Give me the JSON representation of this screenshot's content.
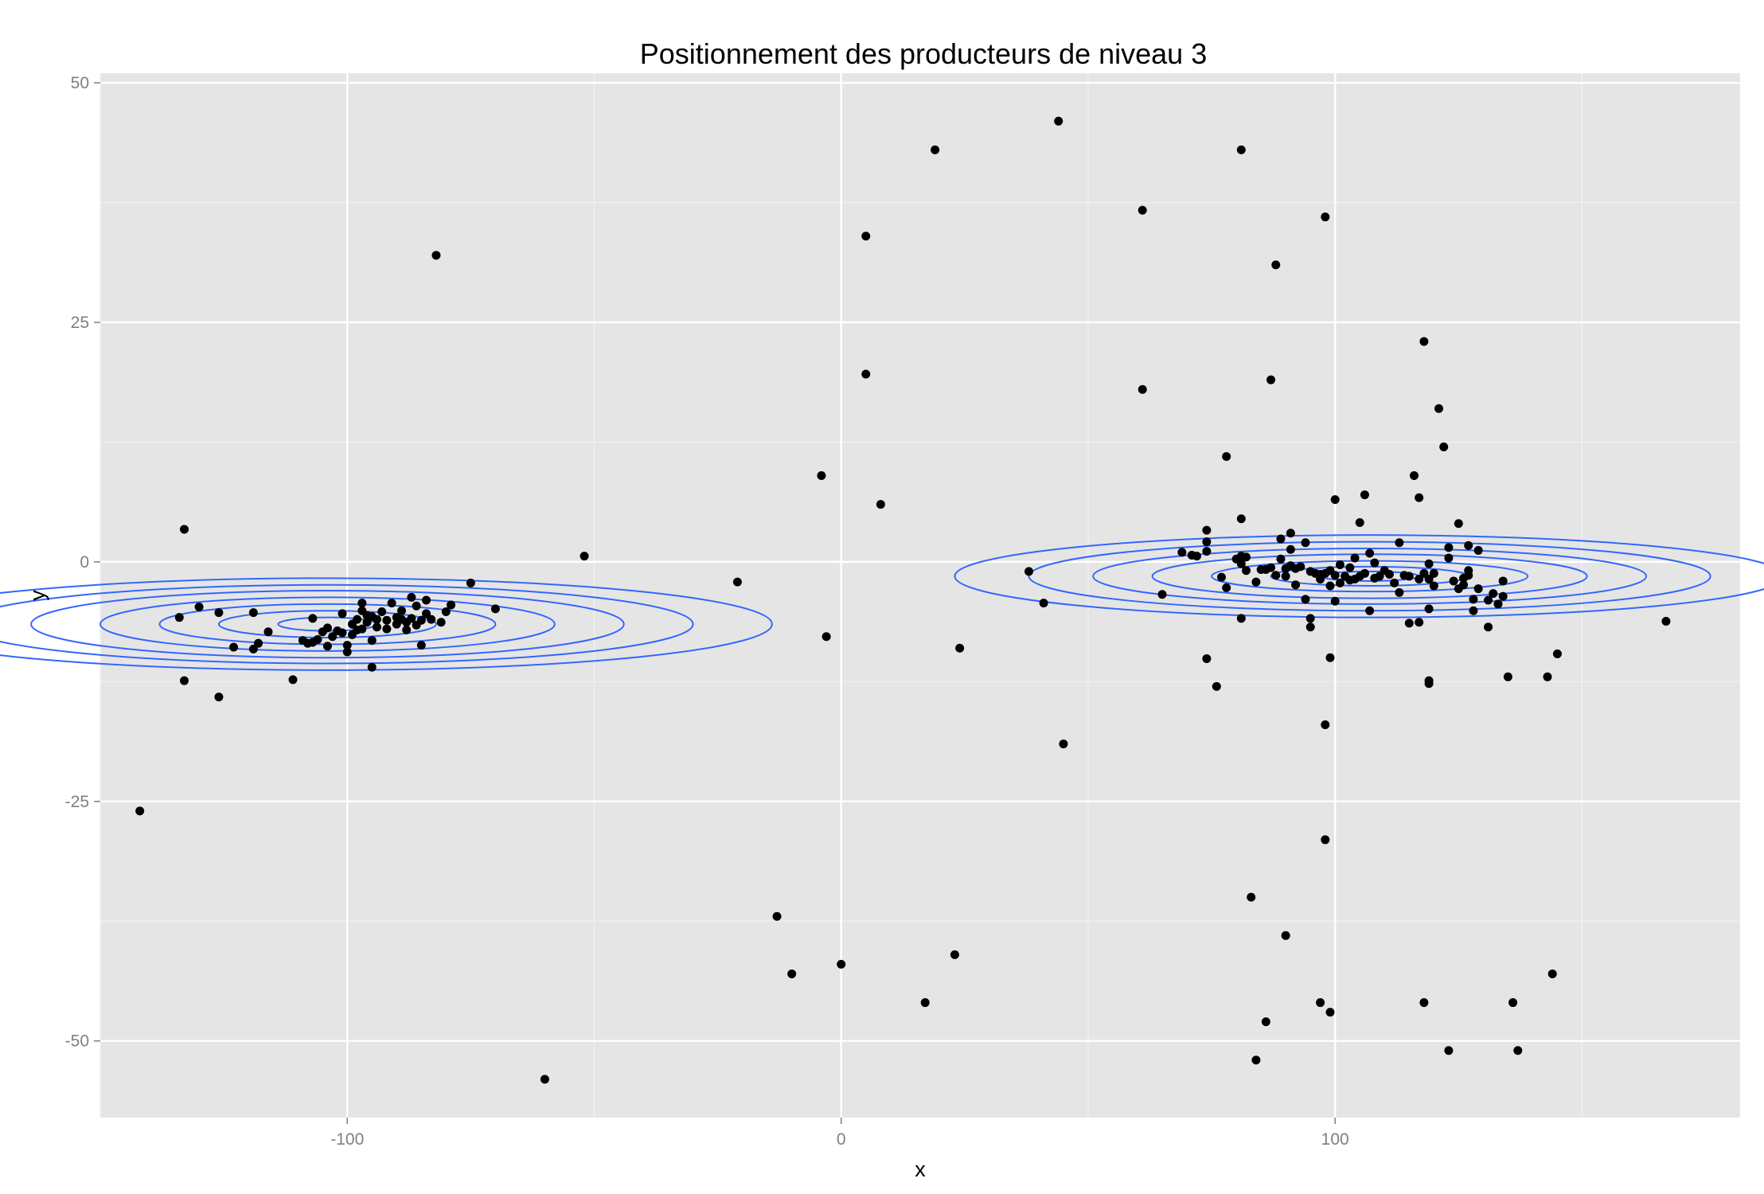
{
  "chart_data": {
    "type": "scatter",
    "title": "Positionnement des producteurs de niveau 3",
    "xlabel": "x",
    "ylabel": "y",
    "xlim": [
      -150,
      182
    ],
    "ylim": [
      -58,
      51
    ],
    "x_ticks": [
      -100,
      0,
      100
    ],
    "y_ticks": [
      -50,
      -25,
      0,
      25,
      50
    ],
    "x_tick_labels": [
      "-100",
      "0",
      "100"
    ],
    "y_tick_labels": [
      "-50",
      "-25",
      "0",
      "25",
      "50"
    ],
    "grid": true,
    "legend": "none",
    "colors": {
      "panel": "#e5e5e5",
      "grid_major": "#ffffff",
      "grid_minor": "#f2f2f2",
      "points": "#000000",
      "contours": "#3366ff"
    },
    "series": [
      {
        "type": "scatter",
        "points": [
          [
            -142,
            -26
          ],
          [
            -133,
            3.4
          ],
          [
            -134,
            -5.8
          ],
          [
            -133,
            -12.4
          ],
          [
            -130,
            -4.7
          ],
          [
            -126,
            -14.1
          ],
          [
            -126,
            -5.3
          ],
          [
            -123,
            -8.9
          ],
          [
            -119,
            -5.3
          ],
          [
            -119,
            -9.1
          ],
          [
            -118,
            -8.5
          ],
          [
            -116,
            -7.3
          ],
          [
            -111,
            -12.3
          ],
          [
            -109,
            -8.2
          ],
          [
            -108,
            -8.5
          ],
          [
            -107,
            -5.9
          ],
          [
            -107,
            -8.4
          ],
          [
            -106,
            -8.1
          ],
          [
            -105,
            -7.3
          ],
          [
            -104,
            -8.8
          ],
          [
            -104,
            -6.9
          ],
          [
            -103,
            -7.8
          ],
          [
            -102,
            -7.2
          ],
          [
            -101,
            -5.4
          ],
          [
            -101,
            -7.4
          ],
          [
            -100,
            -9.4
          ],
          [
            -100,
            -8.7
          ],
          [
            -99,
            -7.6
          ],
          [
            -99,
            -6.5
          ],
          [
            -98,
            -7.1
          ],
          [
            -98,
            -6.0
          ],
          [
            -97,
            -5.1
          ],
          [
            -97,
            -4.3
          ],
          [
            -97,
            -7.0
          ],
          [
            -96,
            -6.3
          ],
          [
            -96,
            -5.6
          ],
          [
            -95,
            -11.0
          ],
          [
            -95,
            -8.2
          ],
          [
            -95,
            -5.7
          ],
          [
            -94,
            -6.8
          ],
          [
            -94,
            -6.0
          ],
          [
            -93,
            -5.2
          ],
          [
            -92,
            -6.1
          ],
          [
            -92,
            -7.0
          ],
          [
            -91,
            -4.3
          ],
          [
            -90,
            -6.5
          ],
          [
            -90,
            -5.8
          ],
          [
            -89,
            -6.0
          ],
          [
            -89,
            -5.1
          ],
          [
            -88,
            -6.3
          ],
          [
            -88,
            -7.1
          ],
          [
            -87,
            -3.7
          ],
          [
            -87,
            -5.9
          ],
          [
            -86,
            -6.6
          ],
          [
            -86,
            -4.6
          ],
          [
            -85,
            -6.1
          ],
          [
            -85,
            -8.7
          ],
          [
            -84,
            -4.0
          ],
          [
            -84,
            -5.4
          ],
          [
            -83,
            -6.0
          ],
          [
            -82,
            32
          ],
          [
            -81,
            -6.3
          ],
          [
            -80,
            -5.2
          ],
          [
            -79,
            -4.5
          ],
          [
            -75,
            -2.2
          ],
          [
            -70,
            -4.9
          ],
          [
            -52,
            0.6
          ],
          [
            -60,
            -54
          ],
          [
            -21,
            -2.1
          ],
          [
            -4,
            9
          ],
          [
            -3,
            -7.8
          ],
          [
            5,
            34
          ],
          [
            5,
            19.6
          ],
          [
            8,
            6
          ],
          [
            19,
            43
          ],
          [
            24,
            -9
          ],
          [
            -13,
            -37
          ],
          [
            -10,
            -43
          ],
          [
            0,
            -42
          ],
          [
            17,
            -46
          ],
          [
            23,
            -41
          ],
          [
            38,
            -1
          ],
          [
            41,
            -4.3
          ],
          [
            44,
            46
          ],
          [
            45,
            -19
          ],
          [
            61,
            36.7
          ],
          [
            61,
            18
          ],
          [
            65,
            -3.4
          ],
          [
            69,
            1.0
          ],
          [
            71,
            0.7
          ],
          [
            72,
            0.6
          ],
          [
            74,
            3.3
          ],
          [
            74,
            2.1
          ],
          [
            74,
            1.1
          ],
          [
            74,
            -10.1
          ],
          [
            76,
            -13
          ],
          [
            77,
            -1.6
          ],
          [
            78,
            -2.7
          ],
          [
            78,
            11
          ],
          [
            80,
            0.3
          ],
          [
            81,
            43
          ],
          [
            81,
            -0.2
          ],
          [
            81,
            0.6
          ],
          [
            81,
            -5.9
          ],
          [
            82,
            0.5
          ],
          [
            81,
            4.5
          ],
          [
            82,
            -0.9
          ],
          [
            84,
            -2.1
          ],
          [
            85,
            -0.8
          ],
          [
            86,
            -0.8
          ],
          [
            87,
            19
          ],
          [
            87,
            -0.6
          ],
          [
            88,
            -1.4
          ],
          [
            88,
            31
          ],
          [
            89,
            0.3
          ],
          [
            89,
            2.4
          ],
          [
            90,
            -1.5
          ],
          [
            90,
            -0.7
          ],
          [
            91,
            -0.4
          ],
          [
            91,
            3.0
          ],
          [
            91,
            1.3
          ],
          [
            92,
            -0.7
          ],
          [
            92,
            -2.4
          ],
          [
            93,
            -0.5
          ],
          [
            94,
            -3.9
          ],
          [
            94,
            2.0
          ],
          [
            95,
            -5.9
          ],
          [
            95,
            -6.8
          ],
          [
            95,
            -1.0
          ],
          [
            96,
            -1.2
          ],
          [
            97,
            -1.8
          ],
          [
            97,
            -1.3
          ],
          [
            98,
            -17
          ],
          [
            98,
            -29
          ],
          [
            98,
            36
          ],
          [
            98,
            -1.2
          ],
          [
            99,
            -10
          ],
          [
            99,
            -0.9
          ],
          [
            99,
            -2.5
          ],
          [
            100,
            -4.1
          ],
          [
            100,
            6.5
          ],
          [
            100,
            -1.4
          ],
          [
            101,
            -0.3
          ],
          [
            101,
            -2.2
          ],
          [
            102,
            -1.5
          ],
          [
            103,
            -0.6
          ],
          [
            103,
            -1.9
          ],
          [
            104,
            0.4
          ],
          [
            104,
            -1.8
          ],
          [
            105,
            4.1
          ],
          [
            105,
            -1.5
          ],
          [
            106,
            -1.2
          ],
          [
            106,
            7.0
          ],
          [
            107,
            -5.1
          ],
          [
            107,
            0.9
          ],
          [
            108,
            -1.7
          ],
          [
            108,
            -0.1
          ],
          [
            109,
            -1.5
          ],
          [
            110,
            -0.9
          ],
          [
            111,
            -1.3
          ],
          [
            112,
            -2.2
          ],
          [
            113,
            2.0
          ],
          [
            113,
            -3.2
          ],
          [
            114,
            -1.4
          ],
          [
            115,
            -1.5
          ],
          [
            115,
            -6.4
          ],
          [
            116,
            9
          ],
          [
            117,
            6.7
          ],
          [
            117,
            -1.8
          ],
          [
            117,
            -6.3
          ],
          [
            118,
            23
          ],
          [
            118,
            -1.2
          ],
          [
            119,
            -12.7
          ],
          [
            119,
            -12.4
          ],
          [
            119,
            -4.9
          ],
          [
            119,
            -1.8
          ],
          [
            119,
            -0.2
          ],
          [
            120,
            -2.5
          ],
          [
            120,
            -1.2
          ],
          [
            121,
            16
          ],
          [
            122,
            12
          ],
          [
            123,
            0.4
          ],
          [
            123,
            1.5
          ],
          [
            124,
            -2.0
          ],
          [
            125,
            -2.8
          ],
          [
            125,
            4.0
          ],
          [
            126,
            -2.4
          ],
          [
            126,
            -1.7
          ],
          [
            127,
            -1.4
          ],
          [
            127,
            -0.9
          ],
          [
            127,
            1.7
          ],
          [
            128,
            -5.1
          ],
          [
            128,
            -3.9
          ],
          [
            129,
            1.2
          ],
          [
            129,
            -2.8
          ],
          [
            131,
            -6.8
          ],
          [
            131,
            -4.0
          ],
          [
            132,
            -3.3
          ],
          [
            133,
            -4.4
          ],
          [
            134,
            -2.0
          ],
          [
            134,
            -3.6
          ],
          [
            135,
            -12
          ],
          [
            136,
            -46
          ],
          [
            137,
            -51
          ],
          [
            143,
            -12
          ],
          [
            145,
            -9.6
          ],
          [
            144,
            -43
          ],
          [
            167,
            -6.2
          ],
          [
            83,
            -35
          ],
          [
            86,
            -48
          ],
          [
            84,
            -52
          ],
          [
            90,
            -39
          ],
          [
            99,
            -47
          ],
          [
            97,
            -46
          ],
          [
            118,
            -46
          ],
          [
            123,
            -51
          ]
        ]
      }
    ],
    "density_contours": [
      {
        "center": [
          -104,
          -6.5
        ],
        "levels": [
          {
            "rx": 10,
            "ry": 0.7
          },
          {
            "rx": 22,
            "ry": 1.4
          },
          {
            "rx": 34,
            "ry": 2.1
          },
          {
            "rx": 46,
            "ry": 2.8
          },
          {
            "rx": 60,
            "ry": 3.5
          },
          {
            "rx": 74,
            "ry": 4.1
          },
          {
            "rx": 90,
            "ry": 4.8
          }
        ]
      },
      {
        "center": [
          107,
          -1.5
        ],
        "levels": [
          {
            "rx": 10,
            "ry": 0.5
          },
          {
            "rx": 20,
            "ry": 1.0
          },
          {
            "rx": 32,
            "ry": 1.6
          },
          {
            "rx": 44,
            "ry": 2.3
          },
          {
            "rx": 56,
            "ry": 2.9
          },
          {
            "rx": 69,
            "ry": 3.6
          },
          {
            "rx": 84,
            "ry": 4.3
          }
        ]
      }
    ]
  }
}
